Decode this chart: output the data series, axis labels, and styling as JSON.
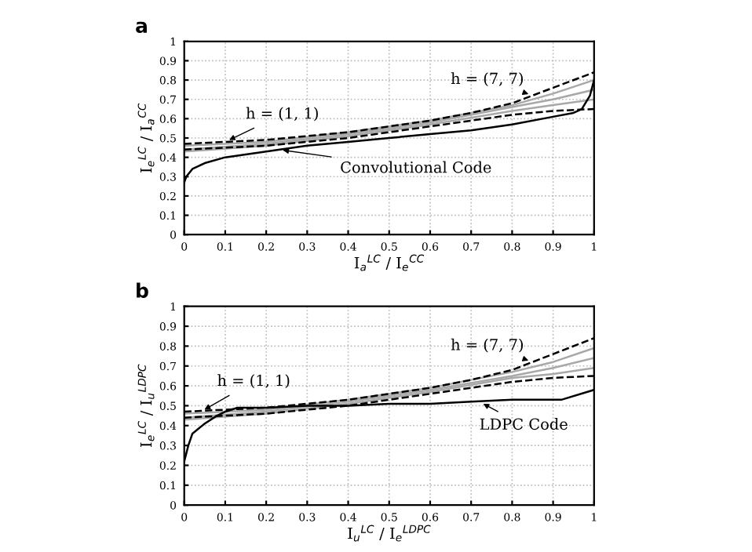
{
  "chart_data": [
    {
      "type": "line",
      "title": "a",
      "xlabel": "I$_{a}$$^{LC}$ / I$_{e}$$^{CC}$",
      "ylabel": "I$_{e}$$^{LC}$ / I$_{a}$$^{CC}$",
      "xlim": [
        0,
        1
      ],
      "ylim": [
        0,
        1
      ],
      "xticks": [
        0,
        0.1,
        0.2,
        0.3,
        0.4,
        0.5,
        0.6,
        0.7,
        0.8,
        0.9,
        1
      ],
      "yticks": [
        0,
        0.1,
        0.2,
        0.3,
        0.4,
        0.5,
        0.6,
        0.7,
        0.8,
        0.9,
        1
      ],
      "grid": true,
      "marker": "none",
      "legend": false,
      "series": [
        {
          "color": "#a8a8a8",
          "line_style": "solid",
          "x": [
            0,
            0.2,
            0.4,
            0.6,
            0.8,
            0.9,
            1
          ],
          "values": [
            0.43,
            0.46,
            0.51,
            0.57,
            0.64,
            0.67,
            0.7
          ]
        },
        {
          "color": "#a8a8a8",
          "line_style": "solid",
          "x": [
            0,
            0.2,
            0.4,
            0.6,
            0.8,
            0.9,
            1
          ],
          "values": [
            0.44,
            0.47,
            0.52,
            0.58,
            0.66,
            0.7,
            0.75
          ]
        },
        {
          "color": "#a8a8a8",
          "line_style": "solid",
          "x": [
            0,
            0.2,
            0.4,
            0.6,
            0.8,
            0.9,
            1
          ],
          "values": [
            0.46,
            0.48,
            0.53,
            0.59,
            0.67,
            0.73,
            0.8
          ]
        },
        {
          "color": "#000000",
          "line_style": "dashed",
          "x": [
            0,
            0.1,
            0.2,
            0.3,
            0.4,
            0.5,
            0.6,
            0.7,
            0.8,
            0.9,
            1
          ],
          "values": [
            0.47,
            0.48,
            0.49,
            0.51,
            0.53,
            0.56,
            0.59,
            0.63,
            0.68,
            0.76,
            0.84
          ]
        },
        {
          "color": "#000000",
          "line_style": "dashed",
          "x": [
            0,
            0.2,
            0.4,
            0.6,
            0.8,
            0.9,
            1
          ],
          "values": [
            0.44,
            0.46,
            0.5,
            0.56,
            0.62,
            0.64,
            0.65
          ]
        },
        {
          "color": "#000000",
          "line_style": "solid",
          "x": [
            0,
            0.005,
            0.02,
            0.05,
            0.1,
            0.2,
            0.3,
            0.4,
            0.5,
            0.6,
            0.7,
            0.8,
            0.9,
            0.95,
            0.97,
            0.99,
            1
          ],
          "values": [
            0.27,
            0.3,
            0.34,
            0.37,
            0.4,
            0.43,
            0.46,
            0.48,
            0.5,
            0.52,
            0.54,
            0.57,
            0.61,
            0.63,
            0.65,
            0.72,
            0.8
          ]
        }
      ],
      "annotations": [
        {
          "text": "h = (1, 1)",
          "x": 0.1,
          "y": 0.48
        },
        {
          "text": "h = (7, 7)",
          "x": 0.85,
          "y": 0.72
        },
        {
          "text": "Convolutional Code",
          "x": 0.23,
          "y": 0.44
        }
      ]
    },
    {
      "type": "line",
      "title": "b",
      "xlabel": "I$_{u}$$^{LC}$ / I$_{e}$$^{LDPC}$",
      "ylabel": "I$_{e}$$^{LC}$ / I$_{u}$$^{LDPC}$",
      "xlim": [
        0,
        1
      ],
      "ylim": [
        0,
        1
      ],
      "xticks": [
        0,
        0.1,
        0.2,
        0.3,
        0.4,
        0.5,
        0.6,
        0.7,
        0.8,
        0.9,
        1
      ],
      "yticks": [
        0,
        0.1,
        0.2,
        0.3,
        0.4,
        0.5,
        0.6,
        0.7,
        0.8,
        0.9,
        1
      ],
      "grid": true,
      "marker": "none",
      "legend": false,
      "series": [
        {
          "color": "#a8a8a8",
          "line_style": "solid",
          "x": [
            0,
            0.2,
            0.4,
            0.6,
            0.8,
            0.9,
            1
          ],
          "values": [
            0.43,
            0.46,
            0.51,
            0.57,
            0.64,
            0.66,
            0.69
          ]
        },
        {
          "color": "#a8a8a8",
          "line_style": "solid",
          "x": [
            0,
            0.2,
            0.4,
            0.6,
            0.8,
            0.9,
            1
          ],
          "values": [
            0.44,
            0.47,
            0.52,
            0.58,
            0.65,
            0.69,
            0.74
          ]
        },
        {
          "color": "#a8a8a8",
          "line_style": "solid",
          "x": [
            0,
            0.2,
            0.4,
            0.6,
            0.8,
            0.9,
            1
          ],
          "values": [
            0.46,
            0.48,
            0.53,
            0.59,
            0.67,
            0.72,
            0.79
          ]
        },
        {
          "color": "#000000",
          "line_style": "dashed",
          "x": [
            0,
            0.1,
            0.2,
            0.3,
            0.4,
            0.5,
            0.6,
            0.7,
            0.8,
            0.9,
            1
          ],
          "values": [
            0.47,
            0.48,
            0.49,
            0.51,
            0.53,
            0.56,
            0.59,
            0.63,
            0.68,
            0.76,
            0.84
          ]
        },
        {
          "color": "#000000",
          "line_style": "dashed",
          "x": [
            0,
            0.2,
            0.4,
            0.6,
            0.8,
            0.9,
            1
          ],
          "values": [
            0.44,
            0.46,
            0.5,
            0.56,
            0.62,
            0.64,
            0.65
          ]
        },
        {
          "color": "#000000",
          "line_style": "solid",
          "x": [
            0,
            0.01,
            0.02,
            0.05,
            0.08,
            0.1,
            0.13,
            0.2,
            0.3,
            0.4,
            0.5,
            0.6,
            0.7,
            0.8,
            0.92,
            1
          ],
          "values": [
            0.22,
            0.3,
            0.36,
            0.41,
            0.45,
            0.47,
            0.49,
            0.49,
            0.5,
            0.5,
            0.51,
            0.51,
            0.52,
            0.53,
            0.53,
            0.58
          ]
        }
      ],
      "annotations": [
        {
          "text": "h = (1, 1)",
          "x": 0.04,
          "y": 0.47
        },
        {
          "text": "h = (7, 7)",
          "x": 0.85,
          "y": 0.72
        },
        {
          "text": "LDPC Code",
          "x": 0.72,
          "y": 0.52
        }
      ]
    }
  ]
}
